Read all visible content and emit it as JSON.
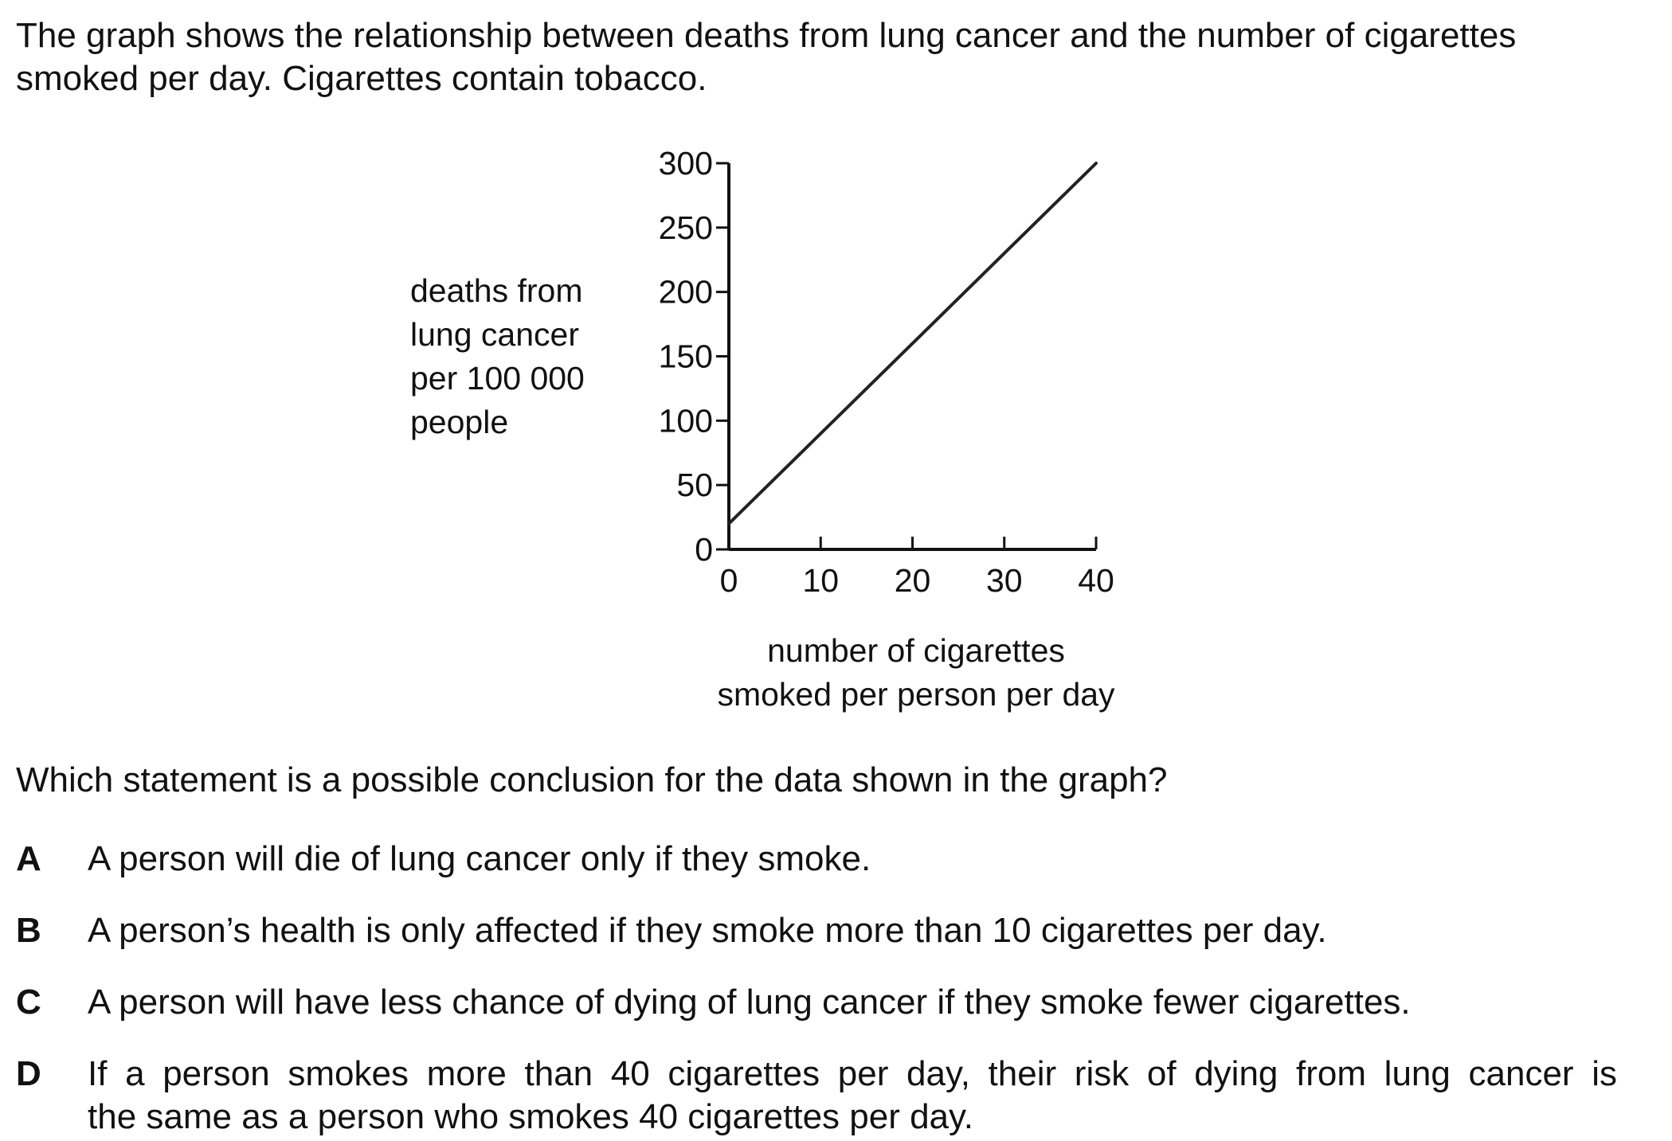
{
  "intro": {
    "line1": "The graph shows the relationship between deaths from lung cancer and the number of cigarettes",
    "line2": "smoked per day. Cigarettes contain tobacco."
  },
  "chart_data": {
    "type": "line",
    "ylabel_lines": [
      "deaths from",
      "lung cancer",
      "per 100 000",
      "people"
    ],
    "xlabel_lines": [
      "number of cigarettes",
      "smoked per person per day"
    ],
    "x_ticks": [
      0,
      10,
      20,
      30,
      40
    ],
    "y_ticks": [
      0,
      50,
      100,
      150,
      200,
      250,
      300
    ],
    "xlim": [
      0,
      40
    ],
    "ylim": [
      0,
      300
    ],
    "grid": false,
    "series": [
      {
        "x": [
          0,
          40
        ],
        "y": [
          20,
          300
        ]
      }
    ]
  },
  "question": "Which statement is a possible conclusion for the data shown in the graph?",
  "options": [
    {
      "letter": "A",
      "lines": [
        "A person will die of lung cancer only if they smoke."
      ]
    },
    {
      "letter": "B",
      "lines": [
        "A person’s health is only affected if they smoke more than 10 cigarettes per day."
      ]
    },
    {
      "letter": "C",
      "lines": [
        "A person will have less chance of dying of lung cancer if they smoke fewer cigarettes."
      ]
    },
    {
      "letter": "D",
      "lines": [
        "If a person smokes more than 40 cigarettes per day, their risk of dying from lung cancer is",
        "the same as a person who smokes 40 cigarettes per day."
      ]
    }
  ]
}
